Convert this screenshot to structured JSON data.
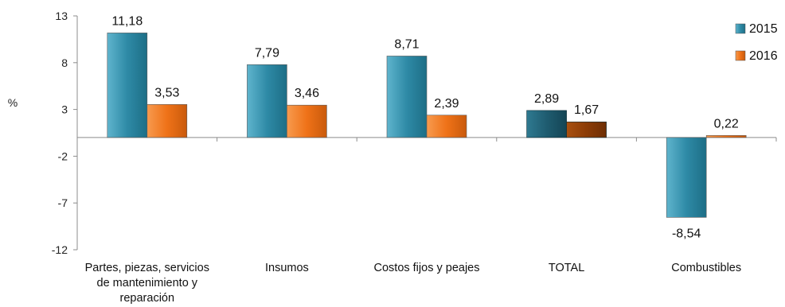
{
  "chart_data": {
    "type": "bar",
    "ylabel": "%",
    "ylim": [
      -12,
      13
    ],
    "yticks": [
      "13",
      "8",
      "3",
      "-2",
      "-7",
      "-12"
    ],
    "ytick_values": [
      13,
      8,
      3,
      -2,
      -7,
      -12
    ],
    "categories": [
      [
        "Partes, piezas, servicios",
        "de mantenimiento y",
        "reparación"
      ],
      [
        "Insumos"
      ],
      [
        "Costos fijos y peajes"
      ],
      [
        "TOTAL"
      ],
      [
        "Combustibles"
      ]
    ],
    "series": [
      {
        "name": "2015",
        "values": [
          11.18,
          7.79,
          8.71,
          2.89,
          -8.54
        ],
        "labels": [
          "11,18",
          "7,79",
          "8,71",
          "2,89",
          "-8,54"
        ],
        "color": "#2e8aa6"
      },
      {
        "name": "2016",
        "values": [
          3.53,
          3.46,
          2.39,
          1.67,
          0.22
        ],
        "labels": [
          "3,53",
          "3,46",
          "2,39",
          "1,67",
          "0,22"
        ],
        "color": "#ef7218"
      }
    ],
    "highlight_category_index": 3,
    "highlight_colors": [
      "#1f5c70",
      "#8c3c06"
    ],
    "legend_position": "top-right",
    "grid": false
  }
}
